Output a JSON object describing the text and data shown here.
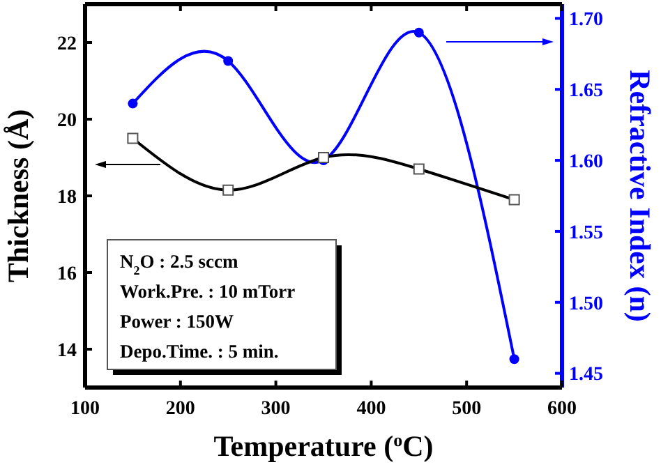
{
  "chart_data": {
    "type": "line",
    "xlabel": "Temperature ($^{o}$C)",
    "ylabel": "Thickness (Å)",
    "y2label": "Refractive Index (n)",
    "x": [
      150,
      250,
      350,
      450,
      550
    ],
    "series": [
      {
        "color": "#000000",
        "values": [
          19.5,
          18.15,
          19.0,
          18.7,
          17.9
        ],
        "marker": "square"
      },
      {
        "color": "#0000ff",
        "values": [
          1.64,
          1.67,
          1.6,
          1.69,
          1.46
        ],
        "marker": "circle",
        "axis": "y2"
      }
    ],
    "xlim": [
      100,
      600
    ],
    "xticks": [
      100,
      200,
      300,
      400,
      500,
      600
    ],
    "ylim": [
      13,
      23
    ],
    "yticks": [
      14,
      16,
      18,
      20,
      22
    ],
    "y2lim": [
      1.44,
      1.71
    ],
    "y2ticks": [
      {
        "value": 1.45,
        "label": "1.45"
      },
      {
        "value": 1.5,
        "label": "1.50"
      },
      {
        "value": 1.55,
        "label": "1.55"
      },
      {
        "value": 1.6,
        "label": "1.60"
      },
      {
        "value": 1.65,
        "label": "1.65"
      },
      {
        "value": 1.7,
        "label": "1.70"
      }
    ],
    "annotations": [
      "N$_{2}$O  : 2.5 sccm",
      "Work.Pre. : 10 mTorr",
      "Power  : 150W",
      "Depo.Time.  : 5 min."
    ],
    "grid": false,
    "line_style": "solid"
  }
}
